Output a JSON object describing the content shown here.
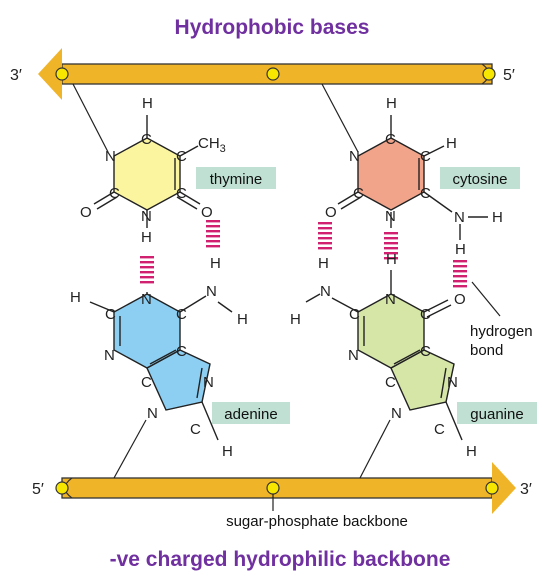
{
  "headings": {
    "top": "Hydrophobic bases",
    "bottom": "-ve charged hydrophilic backbone"
  },
  "strand_ends": {
    "top_left": "3′",
    "top_right": "5′",
    "bottom_left": "5′",
    "bottom_right": "3′"
  },
  "bases": {
    "thymine": "thymine",
    "cytosine": "cytosine",
    "adenine": "adenine",
    "guanine": "guanine"
  },
  "annotations": {
    "backbone": "sugar-phosphate backbone",
    "hbond_line1": "hydrogen",
    "hbond_line2": "bond"
  },
  "atoms": {
    "H": "H",
    "C": "C",
    "N": "N",
    "O": "O",
    "CH3": "CH3"
  },
  "colors": {
    "backbone": "#f0b429",
    "backbone_stroke": "#333333",
    "phosphate": "#f7e600",
    "thymine": "#fbf5a0",
    "cytosine": "#f2a48a",
    "adenine": "#8dcff3",
    "guanine": "#d5e6a7",
    "label_bg": "#bfe0d3",
    "hydrogen_bond": "#d0206f",
    "heading": "#7030a0"
  }
}
